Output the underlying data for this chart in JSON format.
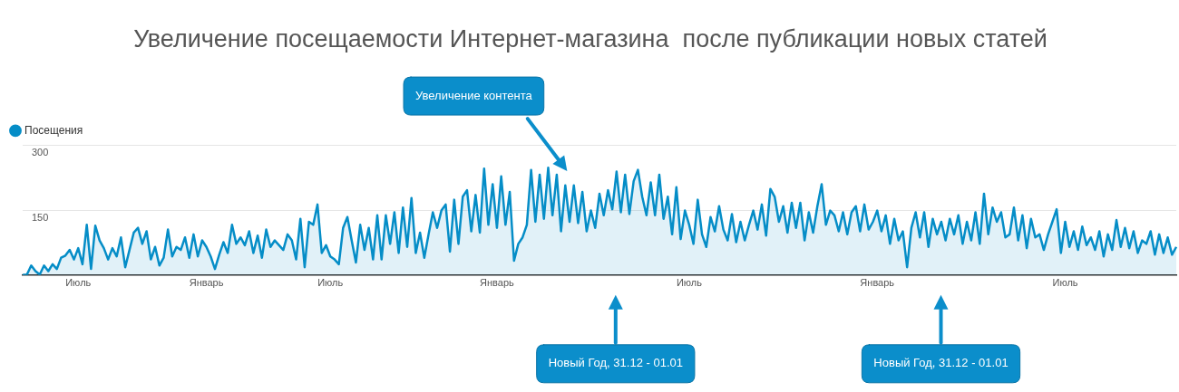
{
  "chart_data": {
    "type": "area",
    "title": "Увеличение посещаемости Интернет-магазина  после публикации новых статей",
    "categories": [
      null,
      null,
      null,
      null,
      null,
      null,
      null,
      null,
      null,
      null,
      null,
      null,
      null,
      "Июль",
      null,
      null,
      null,
      null,
      null,
      null,
      null,
      null,
      null,
      null,
      null,
      null,
      null,
      null,
      null,
      null,
      null,
      null,
      null,
      null,
      null,
      null,
      null,
      null,
      null,
      null,
      null,
      null,
      null,
      "Январь",
      null,
      null,
      null,
      null,
      null,
      null,
      null,
      null,
      null,
      null,
      null,
      null,
      null,
      null,
      null,
      null,
      null,
      null,
      null,
      null,
      null,
      null,
      null,
      null,
      null,
      null,
      null,
      null,
      "Июль",
      null,
      null,
      null,
      null,
      null,
      null,
      null,
      null,
      null,
      null,
      null,
      null,
      null,
      null,
      null,
      null,
      null,
      null,
      null,
      null,
      null,
      null,
      null,
      null,
      null,
      null,
      null,
      null,
      null,
      null,
      null,
      null,
      null,
      null,
      null,
      null,
      null,
      null,
      "Январь",
      null,
      null,
      null,
      null,
      null,
      null,
      null,
      null,
      null,
      null,
      null,
      null,
      null,
      null,
      null,
      null,
      null,
      null,
      null,
      null,
      null,
      null,
      null,
      null,
      null,
      null,
      null,
      null,
      null,
      null,
      null,
      null,
      null,
      null,
      null,
      null,
      null,
      null,
      null,
      null,
      null,
      null,
      null,
      null,
      "Июль",
      null,
      null,
      null,
      null,
      null,
      null,
      null,
      null,
      null,
      null,
      null,
      null,
      null,
      null,
      null,
      null,
      null,
      null,
      null,
      null,
      null,
      null,
      null,
      null,
      null,
      null,
      null,
      null,
      null,
      null,
      null,
      null,
      null,
      null,
      null,
      null,
      null,
      null,
      null,
      null,
      null,
      null,
      null,
      "Январь",
      null,
      null,
      null,
      null,
      null,
      null,
      null,
      null,
      null,
      null,
      null,
      null,
      null,
      null,
      null,
      null,
      null,
      null,
      null,
      null,
      null,
      null,
      null,
      null,
      null,
      null,
      null,
      null,
      null,
      null,
      null,
      null,
      null,
      null,
      null,
      null,
      null,
      null,
      null,
      null,
      null,
      null,
      null,
      "Июль",
      null,
      null,
      null,
      null,
      null,
      null,
      null,
      null,
      null,
      null,
      null,
      null,
      null,
      null,
      null,
      null,
      null,
      null,
      null,
      null,
      null,
      null,
      null,
      null,
      null,
      null
    ],
    "ylim": [
      0,
      300
    ],
    "yticks": [
      {
        "value": 0,
        "label": null
      },
      150,
      300
    ],
    "grid": "y",
    "legend": "top left",
    "marker": "none",
    "annotations": [
      "Увеличение контента",
      "Новый Год, 31.12 - 01.01",
      "Новый Год, 31.12 - 01.01"
    ],
    "series": [
      {
        "name": "Посещения",
        "color": "#058dc7",
        "values": [
          0,
          1,
          22,
          9,
          1,
          22,
          9,
          25,
          14,
          40,
          45,
          58,
          36,
          62,
          25,
          116,
          14,
          114,
          80,
          62,
          36,
          62,
          43,
          87,
          18,
          58,
          98,
          109,
          72,
          101,
          36,
          65,
          22,
          40,
          105,
          43,
          65,
          58,
          87,
          40,
          94,
          43,
          80,
          65,
          43,
          14,
          47,
          76,
          51,
          116,
          72,
          87,
          69,
          101,
          51,
          91,
          40,
          105,
          65,
          80,
          69,
          58,
          94,
          80,
          36,
          130,
          18,
          123,
          116,
          163,
          51,
          69,
          43,
          36,
          25,
          109,
          134,
          80,
          29,
          116,
          58,
          109,
          36,
          138,
          36,
          138,
          72,
          145,
          51,
          156,
          65,
          178,
          51,
          98,
          40,
          94,
          145,
          109,
          149,
          163,
          54,
          174,
          72,
          181,
          196,
          101,
          185,
          98,
          246,
          116,
          210,
          109,
          228,
          116,
          192,
          33,
          72,
          87,
          116,
          243,
          123,
          232,
          130,
          248,
          138,
          232,
          101,
          207,
          123,
          207,
          120,
          192,
          101,
          149,
          109,
          188,
          138,
          196,
          152,
          239,
          145,
          232,
          141,
          217,
          243,
          181,
          138,
          214,
          138,
          232,
          130,
          181,
          94,
          203,
          83,
          149,
          116,
          72,
          174,
          94,
          65,
          134,
          101,
          159,
          105,
          80,
          141,
          76,
          123,
          80,
          116,
          149,
          105,
          163,
          91,
          199,
          181,
          123,
          159,
          98,
          167,
          109,
          167,
          80,
          145,
          98,
          159,
          210,
          116,
          149,
          138,
          101,
          145,
          94,
          145,
          159,
          101,
          163,
          105,
          123,
          149,
          101,
          138,
          72,
          130,
          80,
          101,
          18,
          109,
          145,
          87,
          145,
          65,
          130,
          94,
          123,
          80,
          130,
          94,
          138,
          72,
          123,
          80,
          145,
          72,
          188,
          94,
          156,
          123,
          145,
          87,
          94,
          156,
          80,
          138,
          62,
          130,
          87,
          94,
          58,
          94,
          123,
          152,
          51,
          123,
          65,
          101,
          58,
          112,
          69,
          87,
          58,
          101,
          43,
          94,
          58,
          127,
          65,
          109,
          62,
          101,
          51,
          80,
          72,
          101,
          47,
          94,
          51,
          87,
          47,
          65
        ]
      }
    ]
  }
}
